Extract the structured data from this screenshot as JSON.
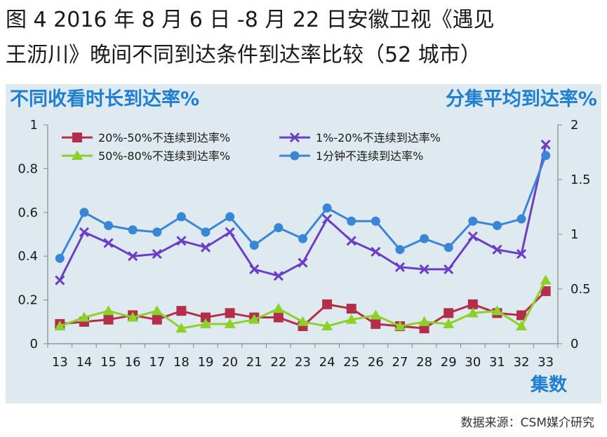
{
  "title_line1": "图 4  2016 年 8 月 6 日 -8 月 22 日安徽卫视《遇见",
  "title_line2": "王沥川》晚间不同到达条件到达率比较（52 城市）",
  "source": "数据来源：CSM媒介研究",
  "colors": {
    "accent": "#1f7fd0",
    "panel_bg": "#dfe9f0"
  },
  "chart_data": {
    "type": "line",
    "left_axis_label": "不同收看时长到达率%",
    "right_axis_label": "分集平均到达率%",
    "xlabel": "集数",
    "categories": [
      "13",
      "14",
      "15",
      "16",
      "17",
      "18",
      "19",
      "20",
      "21",
      "22",
      "23",
      "24",
      "25",
      "26",
      "27",
      "28",
      "29",
      "30",
      "31",
      "32",
      "33"
    ],
    "ylim_left": [
      0,
      1
    ],
    "yticks_left": [
      "0",
      "0.2",
      "0.4",
      "0.6",
      "0.8",
      "1"
    ],
    "ylim_right": [
      0,
      2
    ],
    "yticks_right": [
      "0",
      "0.5",
      "1",
      "1.5",
      "2"
    ],
    "legend_position": "top",
    "series": [
      {
        "name": "20%-50%不连续到达率%",
        "axis": "left",
        "color": "#b42d4a",
        "marker": "square",
        "values": [
          0.09,
          0.1,
          0.11,
          0.13,
          0.11,
          0.15,
          0.12,
          0.14,
          0.12,
          0.12,
          0.08,
          0.18,
          0.16,
          0.09,
          0.08,
          0.07,
          0.14,
          0.18,
          0.14,
          0.13,
          0.24
        ]
      },
      {
        "name": "50%-80%不连续到达率%",
        "axis": "left",
        "color": "#8cd12a",
        "marker": "triangle",
        "values": [
          0.08,
          0.12,
          0.15,
          0.12,
          0.15,
          0.07,
          0.09,
          0.09,
          0.11,
          0.16,
          0.1,
          0.08,
          0.11,
          0.13,
          0.08,
          0.1,
          0.09,
          0.14,
          0.15,
          0.08,
          0.29
        ]
      },
      {
        "name": "1%-20%不连续到达率%",
        "axis": "left",
        "color": "#6a3fc6",
        "marker": "x",
        "values": [
          0.29,
          0.51,
          0.46,
          0.4,
          0.41,
          0.47,
          0.44,
          0.51,
          0.34,
          0.31,
          0.37,
          0.57,
          0.47,
          0.42,
          0.35,
          0.34,
          0.34,
          0.49,
          0.43,
          0.41,
          0.91
        ]
      },
      {
        "name": "1分钟不连续到达率%",
        "axis": "left",
        "color": "#3a86d6",
        "marker": "circle",
        "values": [
          0.39,
          0.6,
          0.54,
          0.52,
          0.51,
          0.58,
          0.51,
          0.58,
          0.45,
          0.53,
          0.48,
          0.62,
          0.56,
          0.56,
          0.43,
          0.48,
          0.44,
          0.56,
          0.54,
          0.57,
          0.86
        ]
      }
    ]
  }
}
